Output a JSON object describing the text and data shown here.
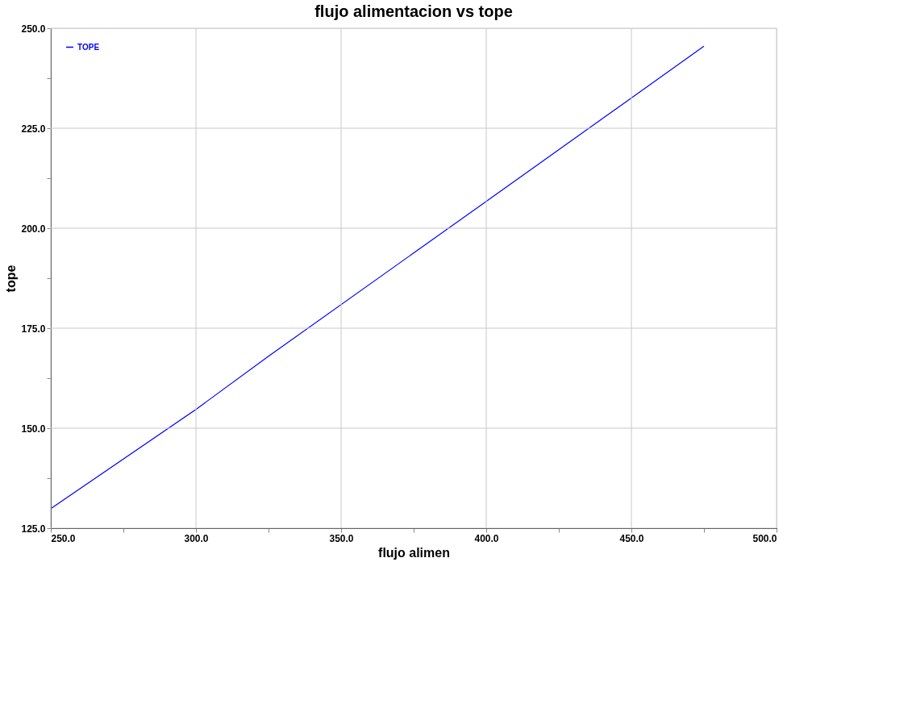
{
  "chart_data": {
    "type": "line",
    "title": "flujo alimentacion vs tope",
    "xlabel": "flujo alimen",
    "ylabel": "tope",
    "x": [
      250,
      300,
      325,
      400,
      475
    ],
    "series": [
      {
        "name": "TOPE",
        "color": "#0000ff",
        "values": [
          129.9,
          154.7,
          168.0,
          206.7,
          245.5
        ]
      }
    ],
    "xlim": [
      250,
      500
    ],
    "ylim": [
      125,
      250
    ],
    "xticks": [
      {
        "value": 250,
        "label": "250.0"
      },
      {
        "value": 275,
        "label": null
      },
      {
        "value": 300,
        "label": "300.0"
      },
      {
        "value": 325,
        "label": null
      },
      {
        "value": 350,
        "label": "350.0"
      },
      {
        "value": 375,
        "label": null
      },
      {
        "value": 400,
        "label": "400.0"
      },
      {
        "value": 425,
        "label": null
      },
      {
        "value": 450,
        "label": "450.0"
      },
      {
        "value": 475,
        "label": null
      },
      {
        "value": 500,
        "label": "500.0"
      }
    ],
    "yticks": [
      {
        "value": 125,
        "label": "125.0"
      },
      {
        "value": 137.5,
        "label": null
      },
      {
        "value": 150,
        "label": "150.0"
      },
      {
        "value": 162.5,
        "label": null
      },
      {
        "value": 175,
        "label": "175.0"
      },
      {
        "value": 187.5,
        "label": null
      },
      {
        "value": 200,
        "label": "200.0"
      },
      {
        "value": 212.5,
        "label": null
      },
      {
        "value": 225,
        "label": "225.0"
      },
      {
        "value": 237.5,
        "label": null
      },
      {
        "value": 250,
        "label": "250.0"
      }
    ],
    "grid": true,
    "legend": "top left",
    "marker": "none",
    "line_style": "solid"
  }
}
